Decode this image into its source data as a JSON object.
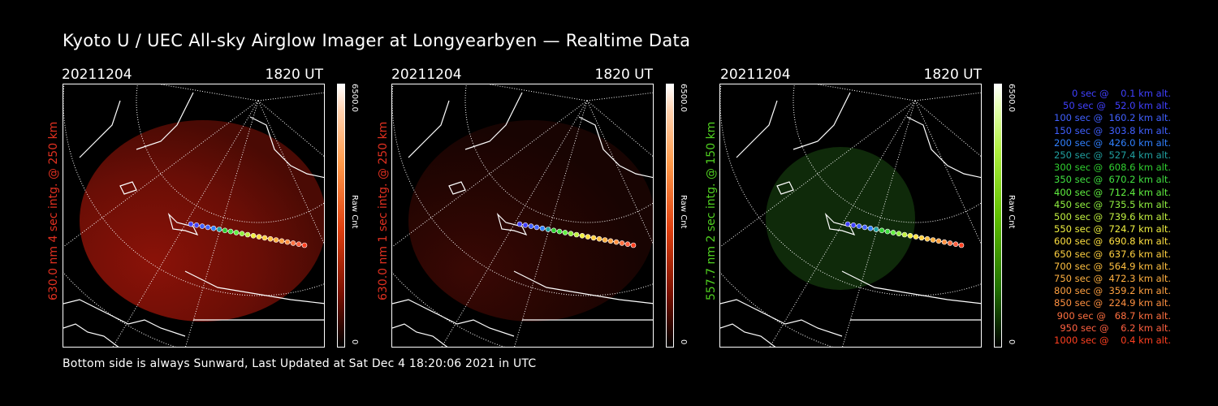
{
  "title": "Kyoto U / UEC All-sky Airglow Imager at Longyearbyen — Realtime Data",
  "footer": "Bottom side is always Sunward, Last Updated at Sat Dec  4 18:20:06 2021 in UTC",
  "panels": [
    {
      "date": "20211204",
      "time": "1820 UT",
      "side_label": "630.0 nm 4 sec intg. @ 250 km",
      "label_color": "#e03020",
      "colorbar_max": "6500.0",
      "colorbar_min": "0",
      "colorbar_unit": "Raw Cnt",
      "colorbar": "red"
    },
    {
      "date": "20211204",
      "time": "1820 UT",
      "side_label": "630.0 nm 1 sec intg. @ 250 km",
      "label_color": "#e03020",
      "colorbar_max": "6500.0",
      "colorbar_min": "0",
      "colorbar_unit": "Raw Cnt",
      "colorbar": "red"
    },
    {
      "date": "20211204",
      "time": "1820 UT",
      "side_label": "557.7 nm 2 sec intg. @ 150 km",
      "label_color": "#50d020",
      "colorbar_max": "6500.0",
      "colorbar_min": "0",
      "colorbar_unit": "Raw Cnt",
      "colorbar": "green"
    }
  ],
  "legend": [
    {
      "text": "   0 sec @    0.1 km alt.",
      "color": "#4040ff"
    },
    {
      "text": "  50 sec @   52.0 km alt.",
      "color": "#4040ff"
    },
    {
      "text": " 100 sec @  160.2 km alt.",
      "color": "#4060ff"
    },
    {
      "text": " 150 sec @  303.8 km alt.",
      "color": "#4060ff"
    },
    {
      "text": " 200 sec @  426.0 km alt.",
      "color": "#3080ff"
    },
    {
      "text": " 250 sec @  527.4 km alt.",
      "color": "#20a0a0"
    },
    {
      "text": " 300 sec @  608.6 km alt.",
      "color": "#30d030"
    },
    {
      "text": " 350 sec @  670.2 km alt.",
      "color": "#40e040"
    },
    {
      "text": " 400 sec @  712.4 km alt.",
      "color": "#60f040"
    },
    {
      "text": " 450 sec @  735.5 km alt.",
      "color": "#90f040"
    },
    {
      "text": " 500 sec @  739.6 km alt.",
      "color": "#c0f040"
    },
    {
      "text": " 550 sec @  724.7 km alt.",
      "color": "#f0f040"
    },
    {
      "text": " 600 sec @  690.8 km alt.",
      "color": "#ffe040"
    },
    {
      "text": " 650 sec @  637.6 km alt.",
      "color": "#ffd040"
    },
    {
      "text": " 700 sec @  564.9 km alt.",
      "color": "#ffc040"
    },
    {
      "text": " 750 sec @  472.3 km alt.",
      "color": "#ffb040"
    },
    {
      "text": " 800 sec @  359.2 km alt.",
      "color": "#ffa040"
    },
    {
      "text": " 850 sec @  224.9 km alt.",
      "color": "#ff9040"
    },
    {
      "text": " 900 sec @   68.7 km alt.",
      "color": "#ff7040"
    },
    {
      "text": " 950 sec @    6.2 km alt.",
      "color": "#ff6040"
    },
    {
      "text": "1000 sec @    0.4 km alt.",
      "color": "#ff4020"
    }
  ]
}
